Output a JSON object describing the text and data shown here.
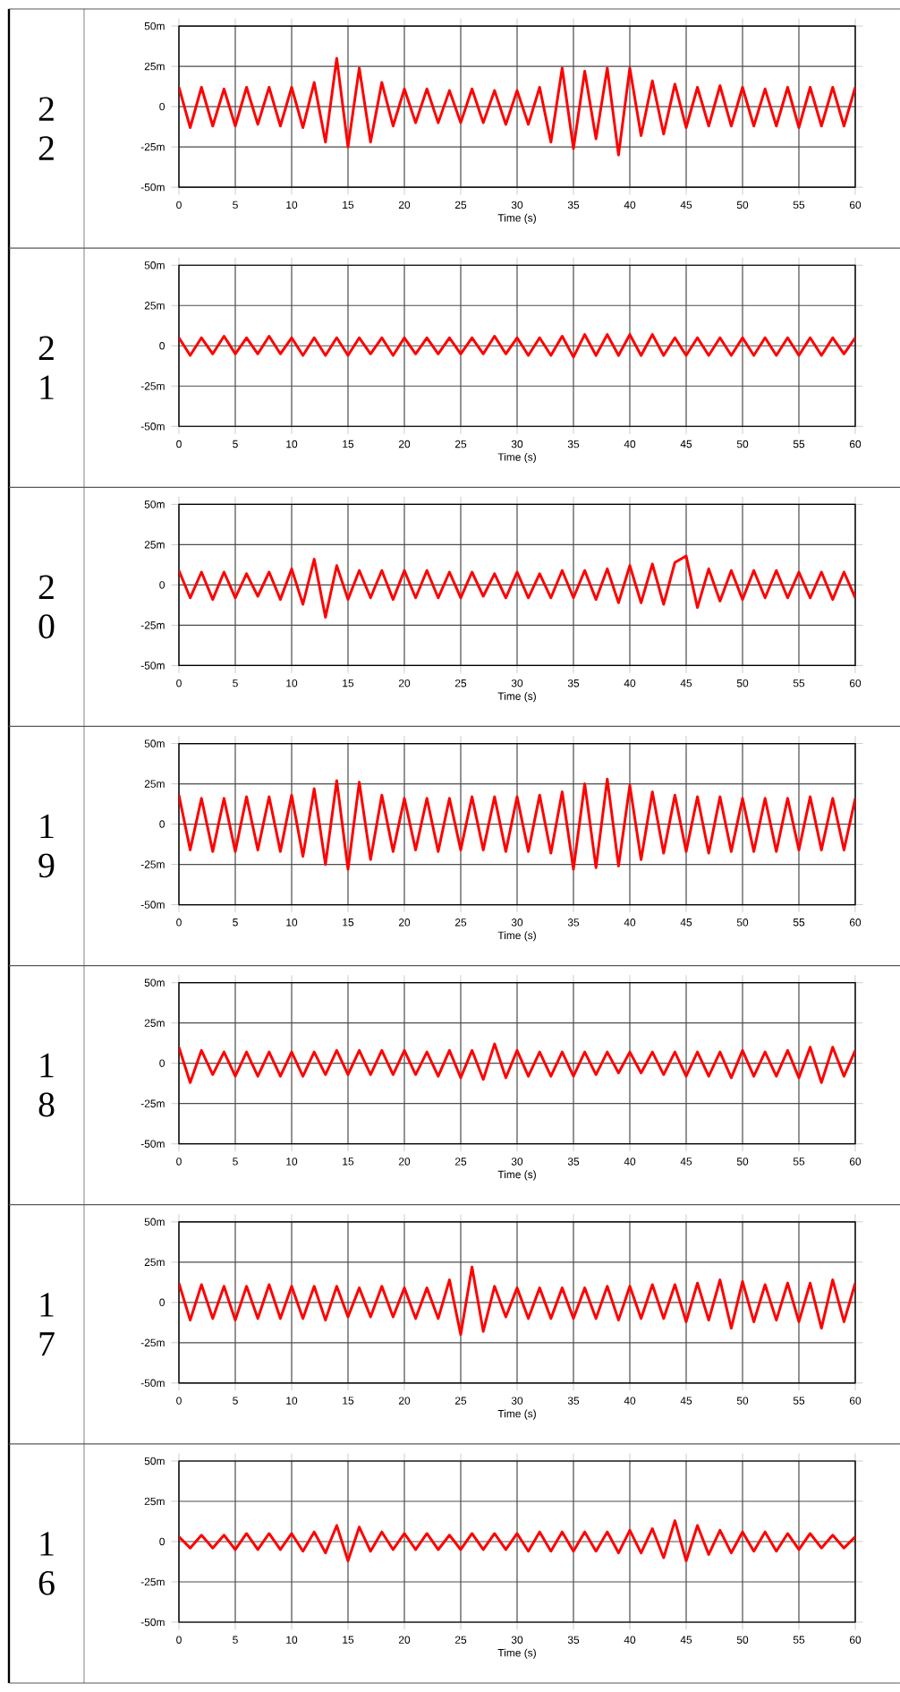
{
  "chart_data": [
    {
      "type": "line",
      "title": "2 2",
      "xlabel": "Time (s)",
      "color": "#ff0000",
      "grid": true,
      "xlim": [
        0,
        60
      ],
      "ylim": [
        -50,
        50
      ],
      "xticks": [
        0,
        5,
        10,
        15,
        20,
        25,
        30,
        35,
        40,
        45,
        50,
        55,
        60
      ],
      "yticks": [
        {
          "value": -50,
          "label": "-50m"
        },
        {
          "value": -25,
          "label": "-25m"
        },
        0,
        {
          "value": 25,
          "label": "25m"
        },
        {
          "value": 50,
          "label": "50m"
        }
      ],
      "x": [
        0,
        1,
        2,
        3,
        4,
        5,
        6,
        7,
        8,
        9,
        10,
        11,
        12,
        13,
        14,
        15,
        16,
        17,
        18,
        19,
        20,
        21,
        22,
        23,
        24,
        25,
        26,
        27,
        28,
        29,
        30,
        31,
        32,
        33,
        34,
        35,
        36,
        37,
        38,
        39,
        40,
        41,
        42,
        43,
        44,
        45,
        46,
        47,
        48,
        49,
        50,
        51,
        52,
        53,
        54,
        55,
        56,
        57,
        58,
        59,
        60
      ],
      "values": [
        12,
        -13,
        12,
        -12,
        11,
        -12,
        12,
        -11,
        12,
        -12,
        12,
        -13,
        15,
        -22,
        30,
        -25,
        24,
        -22,
        15,
        -12,
        11,
        -10,
        11,
        -10,
        10,
        -10,
        11,
        -10,
        10,
        -11,
        10,
        -11,
        12,
        -22,
        24,
        -26,
        22,
        -20,
        24,
        -30,
        24,
        -18,
        16,
        -17,
        14,
        -13,
        12,
        -12,
        13,
        -12,
        12,
        -12,
        11,
        -12,
        12,
        -13,
        12,
        -12,
        12,
        -12,
        12
      ]
    },
    {
      "type": "line",
      "title": "2 1",
      "xlabel": "Time (s)",
      "color": "#ff0000",
      "grid": true,
      "xlim": [
        0,
        60
      ],
      "ylim": [
        -50,
        50
      ],
      "xticks": [
        0,
        5,
        10,
        15,
        20,
        25,
        30,
        35,
        40,
        45,
        50,
        55,
        60
      ],
      "yticks": [
        {
          "value": -50,
          "label": "-50m"
        },
        {
          "value": -25,
          "label": "-25m"
        },
        0,
        {
          "value": 25,
          "label": "25m"
        },
        {
          "value": 50,
          "label": "50m"
        }
      ],
      "x": [
        0,
        1,
        2,
        3,
        4,
        5,
        6,
        7,
        8,
        9,
        10,
        11,
        12,
        13,
        14,
        15,
        16,
        17,
        18,
        19,
        20,
        21,
        22,
        23,
        24,
        25,
        26,
        27,
        28,
        29,
        30,
        31,
        32,
        33,
        34,
        35,
        36,
        37,
        38,
        39,
        40,
        41,
        42,
        43,
        44,
        45,
        46,
        47,
        48,
        49,
        50,
        51,
        52,
        53,
        54,
        55,
        56,
        57,
        58,
        59,
        60
      ],
      "values": [
        5,
        -6,
        5,
        -5,
        6,
        -5,
        5,
        -5,
        6,
        -5,
        5,
        -6,
        5,
        -6,
        5,
        -6,
        5,
        -5,
        5,
        -6,
        5,
        -5,
        5,
        -5,
        5,
        -5,
        5,
        -5,
        6,
        -5,
        5,
        -6,
        5,
        -6,
        6,
        -7,
        7,
        -6,
        7,
        -6,
        7,
        -6,
        7,
        -6,
        5,
        -6,
        5,
        -6,
        5,
        -6,
        5,
        -6,
        5,
        -6,
        5,
        -6,
        5,
        -6,
        5,
        -5,
        5
      ]
    },
    {
      "type": "line",
      "title": "2 0",
      "xlabel": "Time (s)",
      "color": "#ff0000",
      "grid": true,
      "xlim": [
        0,
        60
      ],
      "ylim": [
        -50,
        50
      ],
      "xticks": [
        0,
        5,
        10,
        15,
        20,
        25,
        30,
        35,
        40,
        45,
        50,
        55,
        60
      ],
      "yticks": [
        {
          "value": -50,
          "label": "-50m"
        },
        {
          "value": -25,
          "label": "-25m"
        },
        0,
        {
          "value": 25,
          "label": "25m"
        },
        {
          "value": 50,
          "label": "50m"
        }
      ],
      "x": [
        0,
        1,
        2,
        3,
        4,
        5,
        6,
        7,
        8,
        9,
        10,
        11,
        12,
        13,
        14,
        15,
        16,
        17,
        18,
        19,
        20,
        21,
        22,
        23,
        24,
        25,
        26,
        27,
        28,
        29,
        30,
        31,
        32,
        33,
        34,
        35,
        36,
        37,
        38,
        39,
        40,
        41,
        42,
        43,
        44,
        45,
        46,
        47,
        48,
        49,
        50,
        51,
        52,
        53,
        54,
        55,
        56,
        57,
        58,
        59,
        60
      ],
      "values": [
        9,
        -8,
        8,
        -9,
        8,
        -8,
        7,
        -7,
        8,
        -9,
        10,
        -12,
        16,
        -20,
        12,
        -9,
        9,
        -8,
        9,
        -9,
        9,
        -8,
        9,
        -8,
        8,
        -8,
        8,
        -7,
        7,
        -8,
        8,
        -8,
        7,
        -8,
        9,
        -8,
        9,
        -9,
        10,
        -11,
        12,
        -11,
        13,
        -12,
        14,
        18,
        -14,
        10,
        -10,
        9,
        -9,
        9,
        -8,
        9,
        -8,
        8,
        -8,
        8,
        -9,
        8,
        -8
      ]
    },
    {
      "type": "line",
      "title": "1 9",
      "xlabel": "Time (s)",
      "color": "#ff0000",
      "grid": true,
      "xlim": [
        0,
        60
      ],
      "ylim": [
        -50,
        50
      ],
      "xticks": [
        0,
        5,
        10,
        15,
        20,
        25,
        30,
        35,
        40,
        45,
        50,
        55,
        60
      ],
      "yticks": [
        {
          "value": -50,
          "label": "-50m"
        },
        {
          "value": -25,
          "label": "-25m"
        },
        0,
        {
          "value": 25,
          "label": "25m"
        },
        {
          "value": 50,
          "label": "50m"
        }
      ],
      "x": [
        0,
        1,
        2,
        3,
        4,
        5,
        6,
        7,
        8,
        9,
        10,
        11,
        12,
        13,
        14,
        15,
        16,
        17,
        18,
        19,
        20,
        21,
        22,
        23,
        24,
        25,
        26,
        27,
        28,
        29,
        30,
        31,
        32,
        33,
        34,
        35,
        36,
        37,
        38,
        39,
        40,
        41,
        42,
        43,
        44,
        45,
        46,
        47,
        48,
        49,
        50,
        51,
        52,
        53,
        54,
        55,
        56,
        57,
        58,
        59,
        60
      ],
      "values": [
        18,
        -16,
        16,
        -17,
        16,
        -17,
        17,
        -16,
        17,
        -17,
        18,
        -20,
        22,
        -25,
        27,
        -28,
        26,
        -22,
        18,
        -17,
        16,
        -16,
        16,
        -17,
        16,
        -16,
        17,
        -16,
        17,
        -17,
        17,
        -17,
        18,
        -18,
        20,
        -28,
        25,
        -27,
        28,
        -26,
        24,
        -22,
        20,
        -18,
        18,
        -17,
        17,
        -18,
        17,
        -17,
        16,
        -17,
        16,
        -17,
        16,
        -16,
        17,
        -16,
        16,
        -16,
        16
      ]
    },
    {
      "type": "line",
      "title": "1 8",
      "xlabel": "Time (s)",
      "color": "#ff0000",
      "grid": true,
      "xlim": [
        0,
        60
      ],
      "ylim": [
        -50,
        50
      ],
      "xticks": [
        0,
        5,
        10,
        15,
        20,
        25,
        30,
        35,
        40,
        45,
        50,
        55,
        60
      ],
      "yticks": [
        {
          "value": -50,
          "label": "-50m"
        },
        {
          "value": -25,
          "label": "-25m"
        },
        0,
        {
          "value": 25,
          "label": "25m"
        },
        {
          "value": 50,
          "label": "50m"
        }
      ],
      "x": [
        0,
        1,
        2,
        3,
        4,
        5,
        6,
        7,
        8,
        9,
        10,
        11,
        12,
        13,
        14,
        15,
        16,
        17,
        18,
        19,
        20,
        21,
        22,
        23,
        24,
        25,
        26,
        27,
        28,
        29,
        30,
        31,
        32,
        33,
        34,
        35,
        36,
        37,
        38,
        39,
        40,
        41,
        42,
        43,
        44,
        45,
        46,
        47,
        48,
        49,
        50,
        51,
        52,
        53,
        54,
        55,
        56,
        57,
        58,
        59,
        60
      ],
      "values": [
        10,
        -12,
        8,
        -7,
        7,
        -8,
        7,
        -8,
        7,
        -8,
        7,
        -8,
        7,
        -7,
        8,
        -7,
        8,
        -7,
        8,
        -7,
        8,
        -7,
        7,
        -8,
        8,
        -9,
        8,
        -10,
        12,
        -9,
        8,
        -8,
        7,
        -8,
        7,
        -8,
        7,
        -7,
        7,
        -6,
        7,
        -6,
        7,
        -7,
        7,
        -8,
        7,
        -8,
        7,
        -9,
        8,
        -8,
        7,
        -8,
        8,
        -9,
        10,
        -12,
        10,
        -8,
        8
      ]
    },
    {
      "type": "line",
      "title": "1 7",
      "xlabel": "Time (s)",
      "color": "#ff0000",
      "grid": true,
      "xlim": [
        0,
        60
      ],
      "ylim": [
        -50,
        50
      ],
      "xticks": [
        0,
        5,
        10,
        15,
        20,
        25,
        30,
        35,
        40,
        45,
        50,
        55,
        60
      ],
      "yticks": [
        {
          "value": -50,
          "label": "-50m"
        },
        {
          "value": -25,
          "label": "-25m"
        },
        0,
        {
          "value": 25,
          "label": "25m"
        },
        {
          "value": 50,
          "label": "50m"
        }
      ],
      "x": [
        0,
        1,
        2,
        3,
        4,
        5,
        6,
        7,
        8,
        9,
        10,
        11,
        12,
        13,
        14,
        15,
        16,
        17,
        18,
        19,
        20,
        21,
        22,
        23,
        24,
        25,
        26,
        27,
        28,
        29,
        30,
        31,
        32,
        33,
        34,
        35,
        36,
        37,
        38,
        39,
        40,
        41,
        42,
        43,
        44,
        45,
        46,
        47,
        48,
        49,
        50,
        51,
        52,
        53,
        54,
        55,
        56,
        57,
        58,
        59,
        60
      ],
      "values": [
        12,
        -11,
        11,
        -10,
        10,
        -11,
        10,
        -10,
        11,
        -10,
        10,
        -10,
        10,
        -11,
        10,
        -9,
        9,
        -9,
        10,
        -9,
        9,
        -10,
        9,
        -10,
        14,
        -20,
        22,
        -18,
        10,
        -9,
        9,
        -10,
        9,
        -10,
        9,
        -10,
        9,
        -10,
        10,
        -11,
        10,
        -10,
        11,
        -10,
        11,
        -12,
        12,
        -11,
        14,
        -16,
        13,
        -12,
        11,
        -11,
        12,
        -12,
        12,
        -16,
        14,
        -12,
        12
      ]
    },
    {
      "type": "line",
      "title": "1 6",
      "xlabel": "Time (s)",
      "color": "#ff0000",
      "grid": true,
      "xlim": [
        0,
        60
      ],
      "ylim": [
        -50,
        50
      ],
      "xticks": [
        0,
        5,
        10,
        15,
        20,
        25,
        30,
        35,
        40,
        45,
        50,
        55,
        60
      ],
      "yticks": [
        {
          "value": -50,
          "label": "-50m"
        },
        {
          "value": -25,
          "label": "-25m"
        },
        0,
        {
          "value": 25,
          "label": "25m"
        },
        {
          "value": 50,
          "label": "50m"
        }
      ],
      "x": [
        0,
        1,
        2,
        3,
        4,
        5,
        6,
        7,
        8,
        9,
        10,
        11,
        12,
        13,
        14,
        15,
        16,
        17,
        18,
        19,
        20,
        21,
        22,
        23,
        24,
        25,
        26,
        27,
        28,
        29,
        30,
        31,
        32,
        33,
        34,
        35,
        36,
        37,
        38,
        39,
        40,
        41,
        42,
        43,
        44,
        45,
        46,
        47,
        48,
        49,
        50,
        51,
        52,
        53,
        54,
        55,
        56,
        57,
        58,
        59,
        60
      ],
      "values": [
        3,
        -4,
        4,
        -4,
        4,
        -5,
        5,
        -5,
        5,
        -5,
        5,
        -6,
        6,
        -7,
        10,
        -12,
        9,
        -6,
        6,
        -5,
        5,
        -5,
        5,
        -5,
        4,
        -5,
        5,
        -5,
        5,
        -5,
        5,
        -6,
        6,
        -6,
        6,
        -6,
        6,
        -6,
        6,
        -7,
        7,
        -7,
        8,
        -10,
        13,
        -12,
        10,
        -8,
        7,
        -7,
        6,
        -6,
        6,
        -6,
        5,
        -5,
        5,
        -4,
        4,
        -4,
        3
      ]
    }
  ]
}
